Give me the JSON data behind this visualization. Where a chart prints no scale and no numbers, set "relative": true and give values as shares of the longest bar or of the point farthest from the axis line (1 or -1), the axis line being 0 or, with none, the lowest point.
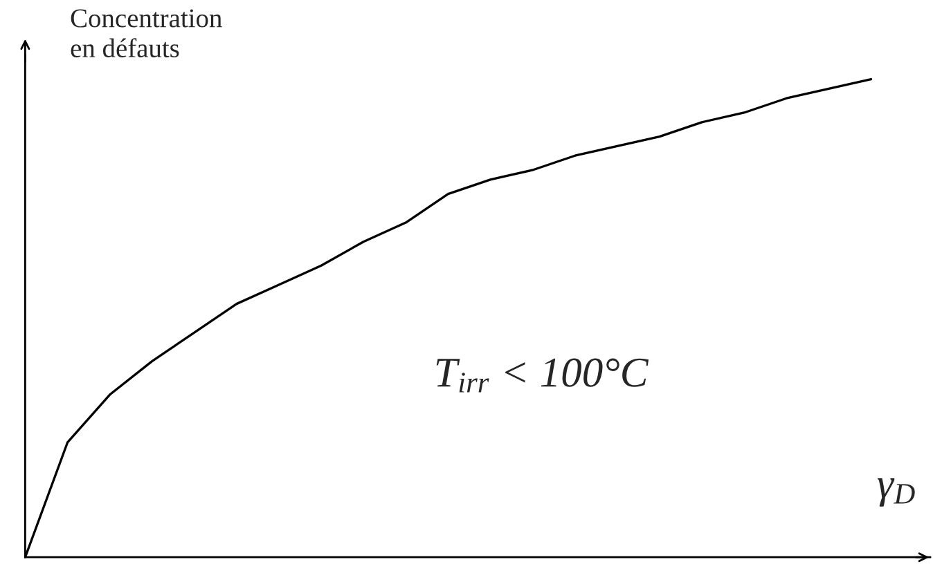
{
  "chart_data": {
    "type": "line",
    "relative": true,
    "categories": [
      null,
      null,
      null,
      null,
      null,
      null,
      null,
      null,
      null,
      null,
      null,
      null,
      null,
      null,
      null,
      null,
      null,
      null,
      null,
      null,
      null
    ],
    "series": [
      {
        "color": "#000000",
        "values": [
          0,
          0.24,
          0.34,
          0.41,
          0.47,
          0.53,
          0.57,
          0.61,
          0.66,
          0.7,
          0.76,
          0.79,
          0.81,
          0.84,
          0.86,
          0.88,
          0.91,
          0.93,
          0.96,
          0.98,
          1
        ]
      }
    ],
    "ylabel": "Concentration\nen défauts",
    "xlabel": "γ$_{D}$",
    "annotations": [
      "T$_{irr}$ < 100°C"
    ]
  }
}
